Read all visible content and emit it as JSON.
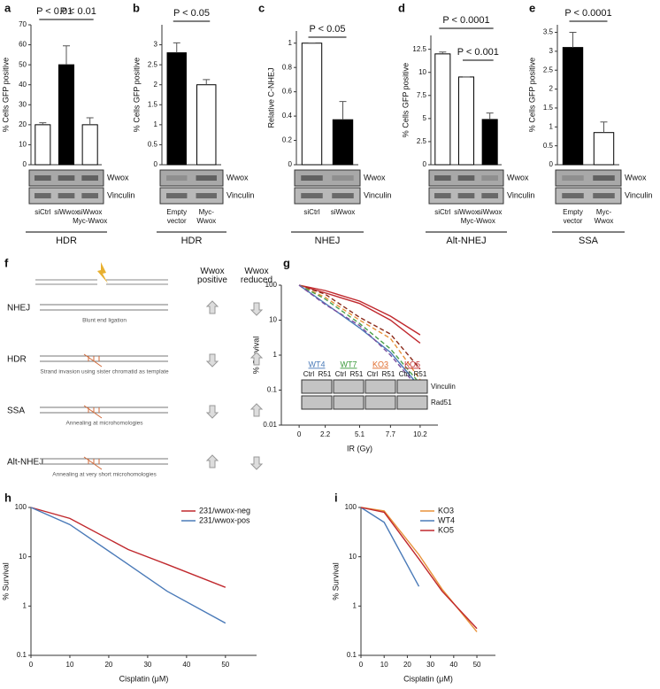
{
  "chart_data": [
    {
      "type": "bar",
      "panel": "a",
      "ylabel": "% Cells GFP positive",
      "categories": [
        "siCtrl",
        "siWwox",
        "siWwox Myc-Wwox"
      ],
      "values": [
        20,
        50,
        20
      ],
      "errors": [
        1,
        9.5,
        3.5
      ],
      "colors": [
        "#ffffff",
        "#000000",
        "#ffffff"
      ],
      "ylim": [
        0,
        70
      ],
      "yticks": [
        0,
        10,
        20,
        30,
        40,
        50,
        60,
        70
      ],
      "annotations": [
        "P < 0.01",
        "P < 0.01"
      ],
      "blot_rows": [
        "Wwox",
        "Vinculin"
      ],
      "group": "HDR"
    },
    {
      "type": "bar",
      "panel": "b",
      "ylabel": "% Cells GFP positive",
      "categories": [
        "Empty vector",
        "Myc- Wwox"
      ],
      "values": [
        2.8,
        2.0
      ],
      "errors": [
        0.25,
        0.13
      ],
      "colors": [
        "#000000",
        "#ffffff"
      ],
      "ylim": [
        0,
        3.5
      ],
      "yticks": [
        0,
        0.5,
        1,
        1.5,
        2,
        2.5,
        3
      ],
      "annotations": [
        "P < 0.05"
      ],
      "blot_rows": [
        "Wwox",
        "Vinculin"
      ],
      "group": "HDR"
    },
    {
      "type": "bar",
      "panel": "c",
      "ylabel": "Relative C-NHEJ",
      "categories": [
        "siCtrl",
        "siWwox"
      ],
      "values": [
        1,
        0.37
      ],
      "errors": [
        0,
        0.15
      ],
      "colors": [
        "#ffffff",
        "#000000"
      ],
      "ylim": [
        0,
        1.1
      ],
      "yticks": [
        0,
        0.2,
        0.4,
        0.6,
        0.8,
        1
      ],
      "annotations": [
        "P < 0.05"
      ],
      "blot_rows": [
        "Wwox",
        "Vinculin"
      ],
      "group": "NHEJ"
    },
    {
      "type": "bar",
      "panel": "d",
      "ylabel": "% Cells GFP positive",
      "categories": [
        "siCtrl",
        "siWwox",
        "siWwox"
      ],
      "category_note": "Myc-Wwox",
      "values": [
        12,
        9.5,
        4.9
      ],
      "errors": [
        0.2,
        0,
        0.7
      ],
      "colors": [
        "#ffffff",
        "#ffffff",
        "#000000"
      ],
      "ylim": [
        0,
        14
      ],
      "yticks": [
        0,
        2.5,
        5,
        7.5,
        10,
        12.5
      ],
      "annotations": [
        "P < 0.0001",
        "P < 0.001"
      ],
      "blot_rows": [
        "Wwox",
        "Vinculin"
      ],
      "group": "Alt-NHEJ"
    },
    {
      "type": "bar",
      "panel": "e",
      "ylabel": "% Cells GFP positive",
      "categories": [
        "Empty vector",
        "Myc- Wwox"
      ],
      "values": [
        3.1,
        0.85
      ],
      "errors": [
        0.4,
        0.28
      ],
      "colors": [
        "#000000",
        "#ffffff"
      ],
      "ylim": [
        0,
        3.7
      ],
      "yticks": [
        0,
        0.5,
        1,
        1.5,
        2,
        2.5,
        3,
        3.5
      ],
      "annotations": [
        "P < 0.0001"
      ],
      "blot_rows": [
        "Wwox",
        "Vinculin"
      ],
      "group": "SSA"
    },
    {
      "type": "line",
      "panel": "g",
      "ylabel": "% Survival",
      "xlabel": "IR (Gy)",
      "log": true,
      "x": [
        0,
        2.2,
        5.1,
        7.7,
        10.2
      ],
      "xlim": [
        -1.5,
        11.7
      ],
      "xticks": [
        0,
        2.2,
        5.1,
        7.7,
        10.2
      ],
      "ylim": [
        0.01,
        100
      ],
      "yticks": [
        0.01,
        0.1,
        1,
        10,
        100
      ],
      "series": [
        {
          "color": "#c0282d",
          "style": "solid",
          "values": [
            100,
            70,
            35,
            13,
            3.8
          ]
        },
        {
          "color": "#c0282d",
          "style": "solid",
          "values": [
            100,
            60,
            30,
            10,
            2.2
          ]
        },
        {
          "color": "#8b2a1a",
          "style": "dashed",
          "values": [
            100,
            55,
            12,
            4,
            0.4
          ]
        },
        {
          "color": "#e8923a",
          "style": "dashed",
          "values": [
            100,
            45,
            10,
            3,
            0.2
          ]
        },
        {
          "color": "#4aa04a",
          "style": "dashed",
          "values": [
            100,
            40,
            8,
            1.5,
            0.15
          ]
        },
        {
          "color": "#4a7ab8",
          "style": "solid",
          "values": [
            100,
            30,
            6,
            1.2,
            0.12
          ]
        },
        {
          "color": "#7a4fa0",
          "style": "dashed",
          "values": [
            100,
            28,
            7,
            1,
            0.1
          ]
        }
      ],
      "blot_groups": [
        {
          "name": "WT4",
          "color": "#4a7ab8"
        },
        {
          "name": "WT7",
          "color": "#3a9a3a"
        },
        {
          "name": "KO3",
          "color": "#e06a2a"
        },
        {
          "name": "KO5",
          "color": "#c0282d"
        }
      ],
      "blot_lanes": [
        "Ctrl",
        "R51"
      ],
      "blot_rows": [
        "Vinculin",
        "Rad51"
      ]
    },
    {
      "type": "line",
      "panel": "h",
      "ylabel": "% Survival",
      "xlabel": "Cisplatin (μM)",
      "log": true,
      "x": [
        0,
        10,
        25,
        35,
        50
      ],
      "xlim": [
        0,
        58
      ],
      "xticks": [
        0,
        10,
        20,
        30,
        40,
        50
      ],
      "ylim": [
        0.1,
        100
      ],
      "yticks": [
        0.1,
        1,
        10,
        100
      ],
      "legend": "top-right",
      "series": [
        {
          "name": "231/wwox-neg",
          "color": "#c0282d",
          "style": "solid",
          "values": [
            100,
            60,
            14,
            7,
            2.4
          ]
        },
        {
          "name": "231/wwox-pos",
          "color": "#4a7ab8",
          "style": "solid",
          "values": [
            100,
            45,
            7,
            2,
            0.45
          ]
        }
      ]
    },
    {
      "type": "line",
      "panel": "i",
      "ylabel": "% Survival",
      "xlabel": "Cisplatin (μM)",
      "log": true,
      "x": [
        0,
        10,
        25,
        35,
        50
      ],
      "xlim": [
        0,
        58
      ],
      "xticks": [
        0,
        10,
        20,
        30,
        40,
        50
      ],
      "ylim": [
        0.1,
        100
      ],
      "yticks": [
        0.1,
        1,
        10,
        100
      ],
      "legend": "top-right",
      "series": [
        {
          "name": "KO3",
          "color": "#e8923a",
          "style": "solid",
          "values": [
            100,
            85,
            11,
            2.2,
            0.3
          ]
        },
        {
          "name": "WT4",
          "color": "#4a7ab8",
          "style": "solid",
          "values": [
            100,
            50,
            2.5,
            null,
            null
          ]
        },
        {
          "name": "KO5",
          "color": "#c0282d",
          "style": "solid",
          "values": [
            100,
            80,
            9,
            2,
            0.35
          ]
        }
      ]
    }
  ],
  "diagram": {
    "panel": "f",
    "columns": [
      "Wwox positive",
      "Wwox reduced"
    ],
    "rows": [
      {
        "name": "NHEJ",
        "caption": "Blunt end ligation"
      },
      {
        "name": "HDR",
        "caption": "Strand invasion using sister chromatid as template"
      },
      {
        "name": "SSA",
        "caption": "Annealing at microhomologies"
      },
      {
        "name": "Alt-NHEJ",
        "caption": "Annealing at very short microhomologies"
      }
    ]
  }
}
